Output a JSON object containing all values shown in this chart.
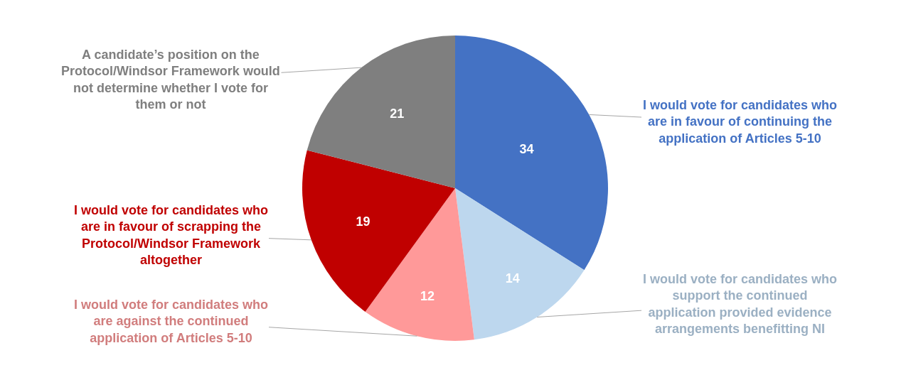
{
  "chart_data": {
    "type": "pie",
    "categories": [
      "I would vote for candidates who are in favour of continuing the application of Articles 5-10",
      "I would vote for candidates who support the continued application provided evidence arrangements benefitting NI",
      "I would vote for candidates who are against the continued application of Articles 5-10",
      "I would vote for candidates who are in favour of scrapping the Protocol/Windsor Framework altogether",
      "A candidate’s position on the Protocol/Windsor Framework would not determine whether I vote for them or not"
    ],
    "values": [
      34,
      14,
      12,
      19,
      21
    ],
    "colors": [
      "#4472c4",
      "#bdd7ee",
      "#ff9999",
      "#c00000",
      "#7f7f7f"
    ],
    "data_labels": true,
    "legend": false
  }
}
